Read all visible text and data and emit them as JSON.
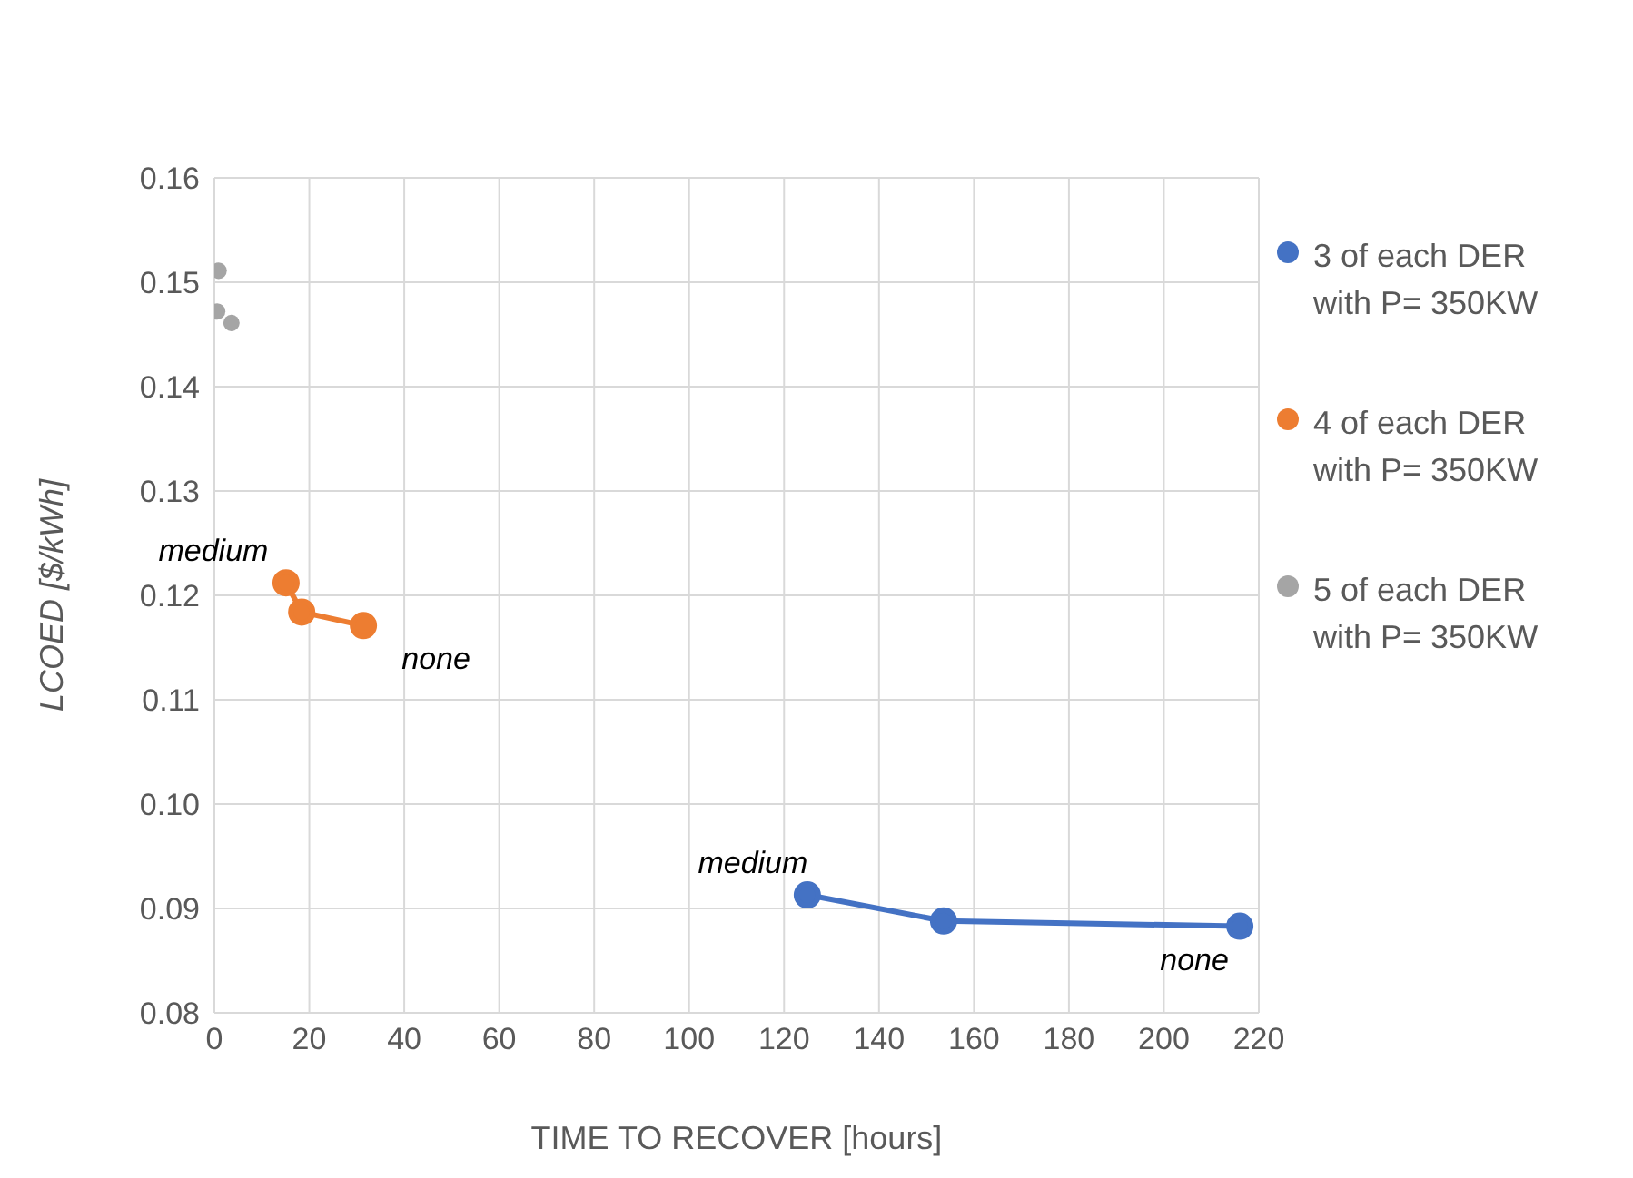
{
  "chart_data": {
    "type": "line",
    "xlabel": "TIME TO RECOVER [hours]",
    "ylabel": "LCOED [$/kWh]",
    "series": [
      {
        "name": "3 of each DER with P= 350KW",
        "color": "#4472c4",
        "x": [
          124.9,
          153.6,
          216
        ],
        "values": [
          0.0913,
          0.0888,
          0.0883
        ]
      },
      {
        "name": "4 of each DER with P= 350KW",
        "color": "#ed7d31",
        "x": [
          15.1,
          18.4,
          31.4
        ],
        "values": [
          0.1212,
          0.1184,
          0.1171
        ]
      },
      {
        "name": "5 of each DER with P= 350KW",
        "color": "#a5a5a5",
        "type": "scatter",
        "x": [
          0.9,
          0.6,
          3.6
        ],
        "values": [
          0.1511,
          0.1472,
          0.1461
        ]
      }
    ],
    "annotations": [
      {
        "text": "medium",
        "x": 124.9,
        "y": 0.0913
      },
      {
        "text": "none",
        "x": 216,
        "y": 0.0883
      },
      {
        "text": "medium",
        "x": 15.1,
        "y": 0.1212
      },
      {
        "text": "none",
        "x": 31.4,
        "y": 0.1171
      }
    ],
    "xlim": [
      0,
      220
    ],
    "xticks": [
      0,
      20,
      40,
      60,
      80,
      100,
      120,
      140,
      160,
      180,
      200,
      220
    ],
    "ylim": [
      0.08,
      0.16
    ],
    "yticks": [
      0.08,
      0.09,
      {
        "value": 0.1,
        "label": "0.10"
      },
      0.11,
      0.12,
      0.13,
      0.14,
      0.15,
      0.16
    ],
    "grid": true,
    "legend": "right",
    "marker": "circle"
  }
}
